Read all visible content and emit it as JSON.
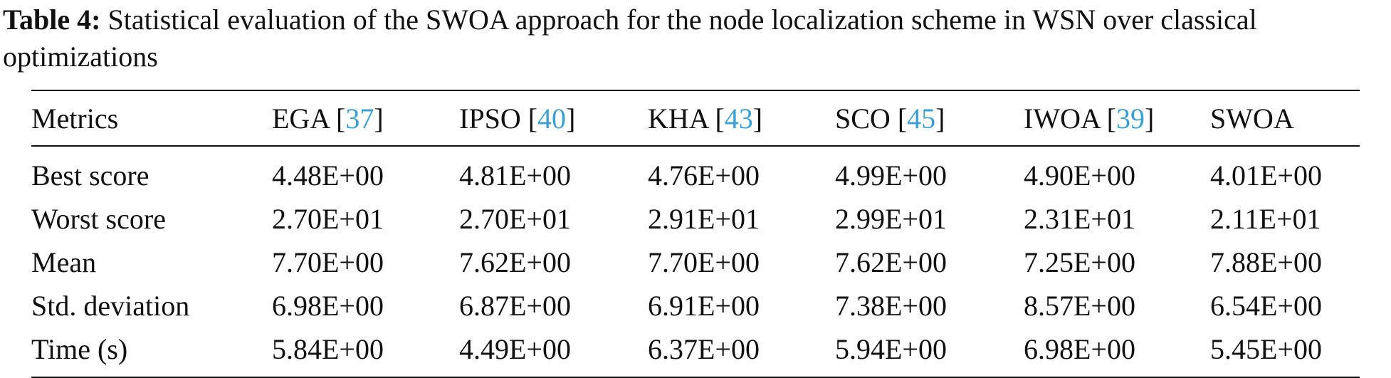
{
  "caption": {
    "label": "Table 4:",
    "text": " Statistical evaluation of the SWOA approach for the node localization scheme in WSN over classical optimizations"
  },
  "table": {
    "headers": [
      {
        "name": "Metrics",
        "ref": ""
      },
      {
        "name": "EGA",
        "ref": "37"
      },
      {
        "name": "IPSO",
        "ref": "40"
      },
      {
        "name": "KHA",
        "ref": "43"
      },
      {
        "name": "SCO",
        "ref": "45"
      },
      {
        "name": "IWOA",
        "ref": "39"
      },
      {
        "name": "SWOA",
        "ref": ""
      }
    ],
    "rows": [
      [
        "Best score",
        "4.48E+00",
        "4.81E+00",
        "4.76E+00",
        "4.99E+00",
        "4.90E+00",
        "4.01E+00"
      ],
      [
        "Worst score",
        "2.70E+01",
        "2.70E+01",
        "2.91E+01",
        "2.99E+01",
        "2.31E+01",
        "2.11E+01"
      ],
      [
        "Mean",
        "7.70E+00",
        "7.62E+00",
        "7.70E+00",
        "7.62E+00",
        "7.25E+00",
        "7.88E+00"
      ],
      [
        "Std. deviation",
        "6.98E+00",
        "6.87E+00",
        "6.91E+00",
        "7.38E+00",
        "8.57E+00",
        "6.54E+00"
      ],
      [
        "Time (s)",
        "5.84E+00",
        "4.49E+00",
        "6.37E+00",
        "5.94E+00",
        "6.98E+00",
        "5.45E+00"
      ]
    ]
  },
  "colors": {
    "reference_link": "#3a9fd4",
    "text": "#111111"
  }
}
